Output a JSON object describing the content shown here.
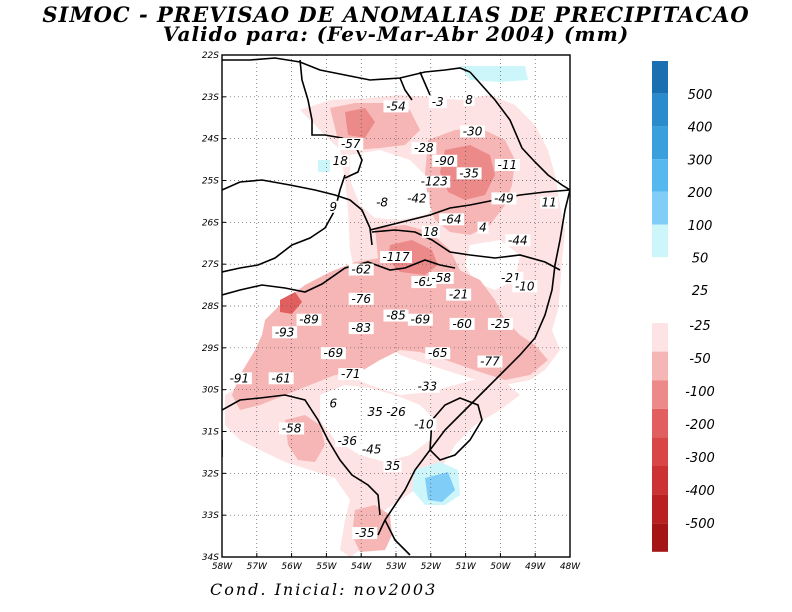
{
  "title": {
    "line1": "SIMOC - PREVISAO DE ANOMALIAS DE PRECIPITACAO",
    "line2": "Valido para: (Fev-Mar-Abr 2004) (mm)"
  },
  "footer": "Cond. Inicial: nov2003",
  "map": {
    "lat_range": [
      -34,
      -22
    ],
    "lon_range": [
      -58,
      -48
    ],
    "lat_labels": [
      "22S",
      "23S",
      "24S",
      "25S",
      "26S",
      "27S",
      "28S",
      "29S",
      "30S",
      "31S",
      "32S",
      "33S",
      "34S"
    ],
    "lon_labels": [
      "58W",
      "57W",
      "56W",
      "55W",
      "54W",
      "53W",
      "52W",
      "51W",
      "50W",
      "49W",
      "48W"
    ],
    "value_labels": [
      {
        "text": "-54",
        "lon": -53.0,
        "lat": -23.3
      },
      {
        "text": "-3",
        "lon": -51.8,
        "lat": -23.2
      },
      {
        "text": "8",
        "lon": -50.9,
        "lat": -23.15
      },
      {
        "text": "-30",
        "lon": -50.8,
        "lat": -23.9
      },
      {
        "text": "-57",
        "lon": -54.3,
        "lat": -24.2
      },
      {
        "text": "-28",
        "lon": -52.2,
        "lat": -24.3
      },
      {
        "text": "18",
        "lon": -54.6,
        "lat": -24.6
      },
      {
        "text": "-90",
        "lon": -51.6,
        "lat": -24.6
      },
      {
        "text": "-11",
        "lon": -49.8,
        "lat": -24.7
      },
      {
        "text": "-35",
        "lon": -50.9,
        "lat": -24.9
      },
      {
        "text": "-123",
        "lon": -51.9,
        "lat": -25.1
      },
      {
        "text": "-42",
        "lon": -52.4,
        "lat": -25.5
      },
      {
        "text": "-49",
        "lon": -49.9,
        "lat": -25.5
      },
      {
        "text": "11",
        "lon": -48.6,
        "lat": -25.6
      },
      {
        "text": "9",
        "lon": -54.8,
        "lat": -25.7
      },
      {
        "text": "-8",
        "lon": -53.4,
        "lat": -25.6
      },
      {
        "text": "-64",
        "lon": -51.4,
        "lat": -26.0
      },
      {
        "text": "4",
        "lon": -50.5,
        "lat": -26.2
      },
      {
        "text": "18",
        "lon": -52.0,
        "lat": -26.3
      },
      {
        "text": "-44",
        "lon": -49.5,
        "lat": -26.5
      },
      {
        "text": "-117",
        "lon": -53.0,
        "lat": -26.9
      },
      {
        "text": "-62",
        "lon": -54.0,
        "lat": -27.2
      },
      {
        "text": "-65",
        "lon": -52.2,
        "lat": -27.5
      },
      {
        "text": "-58",
        "lon": -51.7,
        "lat": -27.4
      },
      {
        "text": "-21",
        "lon": -49.7,
        "lat": -27.4
      },
      {
        "text": "-10",
        "lon": -49.3,
        "lat": -27.6
      },
      {
        "text": "-21",
        "lon": -51.2,
        "lat": -27.8
      },
      {
        "text": "-76",
        "lon": -54.0,
        "lat": -27.9
      },
      {
        "text": "-85",
        "lon": -53.0,
        "lat": -28.3
      },
      {
        "text": "-69",
        "lon": -52.3,
        "lat": -28.4
      },
      {
        "text": "-89",
        "lon": -55.5,
        "lat": -28.4
      },
      {
        "text": "-83",
        "lon": -54.0,
        "lat": -28.6
      },
      {
        "text": "-60",
        "lon": -51.1,
        "lat": -28.5
      },
      {
        "text": "-25",
        "lon": -50.0,
        "lat": -28.5
      },
      {
        "text": "-93",
        "lon": -56.2,
        "lat": -28.7
      },
      {
        "text": "-69",
        "lon": -54.8,
        "lat": -29.2
      },
      {
        "text": "-65",
        "lon": -51.8,
        "lat": -29.2
      },
      {
        "text": "-77",
        "lon": -50.3,
        "lat": -29.4
      },
      {
        "text": "-91",
        "lon": -57.5,
        "lat": -29.8
      },
      {
        "text": "-61",
        "lon": -56.3,
        "lat": -29.8
      },
      {
        "text": "-71",
        "lon": -54.3,
        "lat": -29.7
      },
      {
        "text": "-33",
        "lon": -52.1,
        "lat": -30.0
      },
      {
        "text": "6",
        "lon": -54.8,
        "lat": -30.4
      },
      {
        "text": "35",
        "lon": -53.6,
        "lat": -30.6
      },
      {
        "text": "-26",
        "lon": -53.0,
        "lat": -30.6
      },
      {
        "text": "-10",
        "lon": -52.2,
        "lat": -30.9
      },
      {
        "text": "-58",
        "lon": -56.0,
        "lat": -31.0
      },
      {
        "text": "-36",
        "lon": -54.4,
        "lat": -31.3
      },
      {
        "text": "-45",
        "lon": -53.7,
        "lat": -31.5
      },
      {
        "text": "35",
        "lon": -53.1,
        "lat": -31.9
      },
      {
        "text": "-35",
        "lon": -53.9,
        "lat": -33.5
      }
    ]
  },
  "colorbar": {
    "positive": {
      "colors": [
        "#1a6fb0",
        "#2a8ccc",
        "#3aa0dd",
        "#55b8ee",
        "#80cdf8",
        "#cdf6fb"
      ],
      "labels": [
        "500",
        "400",
        "300",
        "200",
        "100",
        "50",
        "25"
      ]
    },
    "negative": {
      "colors": [
        "#fde3e3",
        "#f7b6b6",
        "#ec8a8a",
        "#e25f5f",
        "#d84646",
        "#cc3232",
        "#bb2020",
        "#a51515"
      ],
      "labels": [
        "-25",
        "-50",
        "-100",
        "-200",
        "-300",
        "-400",
        "-500"
      ]
    }
  }
}
